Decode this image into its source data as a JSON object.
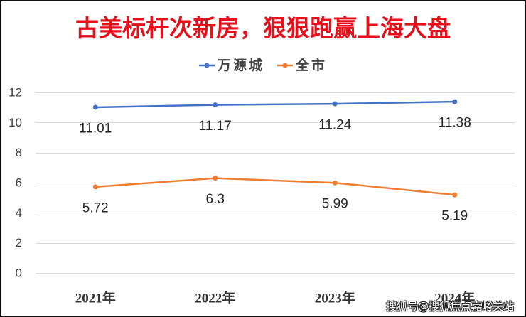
{
  "watermark": "搜狐号@搜狐焦点嘉峪关站",
  "colors": {
    "title": "#e5101a",
    "grid": "#d9d9d9",
    "frame": "#111111"
  },
  "chart_data": {
    "type": "line",
    "title": "古美标杆次新房，狠狠跑赢上海大盘",
    "categories": [
      "2021年",
      "2022年",
      "2023年",
      "2024年"
    ],
    "series": [
      {
        "name": "万源城",
        "values": [
          11.01,
          11.17,
          11.24,
          11.38
        ],
        "color": "#4472c4"
      },
      {
        "name": "全市",
        "values": [
          5.72,
          6.3,
          5.99,
          5.19
        ],
        "color": "#ed7d31"
      }
    ],
    "ylim": [
      0,
      12
    ],
    "yticks": [
      0,
      2,
      4,
      6,
      8,
      10,
      12
    ],
    "grid": true,
    "legend": "top-center",
    "data_labels": true
  }
}
